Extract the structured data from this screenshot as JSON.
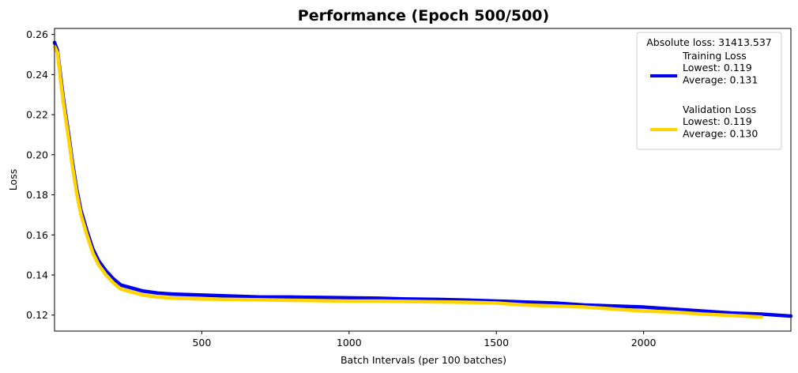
{
  "chart_data": {
    "type": "line",
    "title": "Performance (Epoch 500/500)",
    "xlabel": "Batch Intervals (per 100 batches)",
    "ylabel": "Loss",
    "xlim": [
      0,
      2500
    ],
    "ylim": [
      0.112,
      0.263
    ],
    "x_ticks": [
      500,
      1000,
      1500,
      2000
    ],
    "x_tick_labels": [
      "500",
      "1000",
      "1500",
      "2000"
    ],
    "y_ticks": [
      0.12,
      0.14,
      0.16,
      0.18,
      0.2,
      0.22,
      0.24,
      0.26
    ],
    "y_tick_labels": [
      "0.12",
      "0.14",
      "0.16",
      "0.18",
      "0.20",
      "0.22",
      "0.24",
      "0.26"
    ],
    "grid": false,
    "legend": {
      "placement": "top-right",
      "title": "Absolute loss: 31413.537"
    },
    "series": [
      {
        "name": "Training Loss",
        "legend_lines": [
          "Training Loss",
          "Lowest: 0.119",
          "Average: 0.131"
        ],
        "color": "#0000ee",
        "x": [
          0,
          10,
          20,
          30,
          40,
          50,
          60,
          75,
          90,
          110,
          130,
          150,
          175,
          200,
          225,
          250,
          300,
          350,
          400,
          500,
          600,
          700,
          800,
          900,
          1000,
          1100,
          1200,
          1300,
          1400,
          1500,
          1600,
          1700,
          1800,
          1900,
          2000,
          2100,
          2200,
          2300,
          2400,
          2500
        ],
        "y": [
          0.256,
          0.252,
          0.24,
          0.228,
          0.218,
          0.208,
          0.197,
          0.183,
          0.172,
          0.162,
          0.153,
          0.147,
          0.142,
          0.138,
          0.135,
          0.134,
          0.132,
          0.131,
          0.1305,
          0.13,
          0.1295,
          0.129,
          0.129,
          0.1288,
          0.1286,
          0.1284,
          0.128,
          0.1278,
          0.1275,
          0.127,
          0.1265,
          0.126,
          0.125,
          0.1245,
          0.124,
          0.123,
          0.122,
          0.121,
          0.1205,
          0.1195
        ]
      },
      {
        "name": "Validation Loss",
        "legend_lines": [
          "Validation Loss",
          "Lowest: 0.119",
          "Average: 0.130"
        ],
        "color": "#ffd500",
        "x": [
          0,
          10,
          20,
          30,
          40,
          50,
          60,
          75,
          90,
          110,
          130,
          150,
          175,
          200,
          225,
          250,
          300,
          350,
          400,
          500,
          600,
          700,
          800,
          900,
          1000,
          1100,
          1200,
          1300,
          1400,
          1500,
          1600,
          1700,
          1800,
          1900,
          2000,
          2100,
          2200,
          2300,
          2400
        ],
        "y": [
          0.254,
          0.251,
          0.238,
          0.226,
          0.216,
          0.206,
          0.195,
          0.181,
          0.17,
          0.16,
          0.151,
          0.145,
          0.14,
          0.136,
          0.133,
          0.132,
          0.13,
          0.129,
          0.1285,
          0.128,
          0.1278,
          0.1276,
          0.1274,
          0.1272,
          0.127,
          0.127,
          0.1268,
          0.1266,
          0.1264,
          0.126,
          0.125,
          0.1245,
          0.124,
          0.123,
          0.122,
          0.1215,
          0.1205,
          0.1198,
          0.119
        ]
      }
    ]
  }
}
